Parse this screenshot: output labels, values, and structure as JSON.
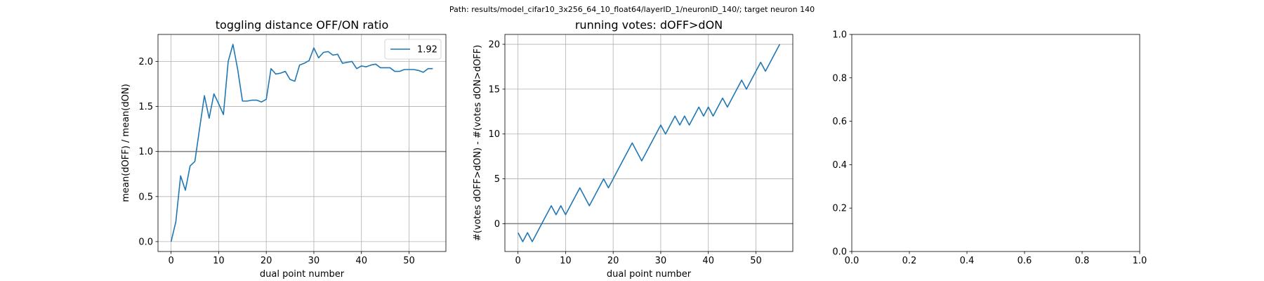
{
  "suptitle": "Path: results/model_cifar10_3x256_64_10_float64/layerID_1/neuronID_140/; target neuron 140",
  "colors": {
    "series": "#1f77b4",
    "grid": "#b0b0b0",
    "refline": "#808080",
    "axes": "#000000",
    "background": "#ffffff"
  },
  "chart_data": [
    {
      "type": "line",
      "title": "toggling distance OFF/ON ratio",
      "xlabel": "dual point number",
      "ylabel": "mean(dOFF) / mean(dON)",
      "xlim": [
        -2.75,
        57.75
      ],
      "ylim": [
        -0.11,
        2.3
      ],
      "xticks": [
        0,
        10,
        20,
        30,
        40,
        50
      ],
      "xtick_labels": [
        "0",
        "10",
        "20",
        "30",
        "40",
        "50"
      ],
      "yticks": [
        0.0,
        0.5,
        1.0,
        1.5,
        2.0
      ],
      "ytick_labels": [
        "0.0",
        "0.5",
        "1.0",
        "1.5",
        "2.0"
      ],
      "grid": true,
      "reference_line": 1.0,
      "legend": {
        "position": "upper right",
        "entries": [
          "1.92"
        ]
      },
      "series": [
        {
          "name": "1.92",
          "x": [
            0,
            1,
            2,
            3,
            4,
            5,
            6,
            7,
            8,
            9,
            10,
            11,
            12,
            13,
            14,
            15,
            16,
            17,
            18,
            19,
            20,
            21,
            22,
            23,
            24,
            25,
            26,
            27,
            28,
            29,
            30,
            31,
            32,
            33,
            34,
            35,
            36,
            37,
            38,
            39,
            40,
            41,
            42,
            43,
            44,
            45,
            46,
            47,
            48,
            49,
            50,
            51,
            52,
            53,
            54,
            55
          ],
          "y": [
            0.0,
            0.22,
            0.73,
            0.57,
            0.84,
            0.89,
            1.26,
            1.62,
            1.37,
            1.64,
            1.53,
            1.41,
            2.0,
            2.19,
            1.91,
            1.56,
            1.56,
            1.57,
            1.57,
            1.55,
            1.58,
            1.92,
            1.86,
            1.87,
            1.89,
            1.8,
            1.78,
            1.96,
            1.98,
            2.01,
            2.15,
            2.04,
            2.1,
            2.11,
            2.07,
            2.08,
            1.98,
            1.99,
            2.0,
            1.92,
            1.95,
            1.94,
            1.96,
            1.97,
            1.93,
            1.93,
            1.93,
            1.89,
            1.89,
            1.91,
            1.91,
            1.91,
            1.9,
            1.88,
            1.92,
            1.92
          ]
        }
      ]
    },
    {
      "type": "line",
      "title": "running votes: dOFF>dON",
      "xlabel": "dual point number",
      "ylabel": "#(votes dOFF>dON) - #(votes dON>dOFF)",
      "xlim": [
        -2.75,
        57.75
      ],
      "ylim": [
        -3.1,
        21.1
      ],
      "xticks": [
        0,
        10,
        20,
        30,
        40,
        50
      ],
      "xtick_labels": [
        "0",
        "10",
        "20",
        "30",
        "40",
        "50"
      ],
      "yticks": [
        0,
        5,
        10,
        15,
        20
      ],
      "ytick_labels": [
        "0",
        "5",
        "10",
        "15",
        "20"
      ],
      "grid": true,
      "reference_line": 0,
      "series": [
        {
          "x": [
            0,
            1,
            2,
            3,
            4,
            5,
            6,
            7,
            8,
            9,
            10,
            11,
            12,
            13,
            14,
            15,
            16,
            17,
            18,
            19,
            20,
            21,
            22,
            23,
            24,
            25,
            26,
            27,
            28,
            29,
            30,
            31,
            32,
            33,
            34,
            35,
            36,
            37,
            38,
            39,
            40,
            41,
            42,
            43,
            44,
            45,
            46,
            47,
            48,
            49,
            50,
            51,
            52,
            53,
            54,
            55
          ],
          "y": [
            -1,
            -2,
            -1,
            -2,
            -1,
            0,
            1,
            2,
            1,
            2,
            1,
            2,
            3,
            4,
            3,
            2,
            3,
            4,
            5,
            4,
            5,
            6,
            7,
            8,
            9,
            8,
            7,
            8,
            9,
            10,
            11,
            10,
            11,
            12,
            11,
            12,
            11,
            12,
            13,
            12,
            13,
            12,
            13,
            14,
            13,
            14,
            15,
            16,
            15,
            16,
            17,
            18,
            17,
            18,
            19,
            20
          ]
        }
      ]
    },
    {
      "type": "line",
      "title": "",
      "xlabel": "",
      "ylabel": "",
      "xlim": [
        0,
        1
      ],
      "ylim": [
        0,
        1
      ],
      "xticks": [
        0,
        0.2,
        0.4,
        0.6,
        0.8,
        1.0
      ],
      "xtick_labels": [
        "0.0",
        "0.2",
        "0.4",
        "0.6",
        "0.8",
        "1.0"
      ],
      "yticks": [
        0,
        0.2,
        0.4,
        0.6,
        0.8,
        1.0
      ],
      "ytick_labels": [
        "0.0",
        "0.2",
        "0.4",
        "0.6",
        "0.8",
        "1.0"
      ],
      "grid": false,
      "series": []
    }
  ]
}
